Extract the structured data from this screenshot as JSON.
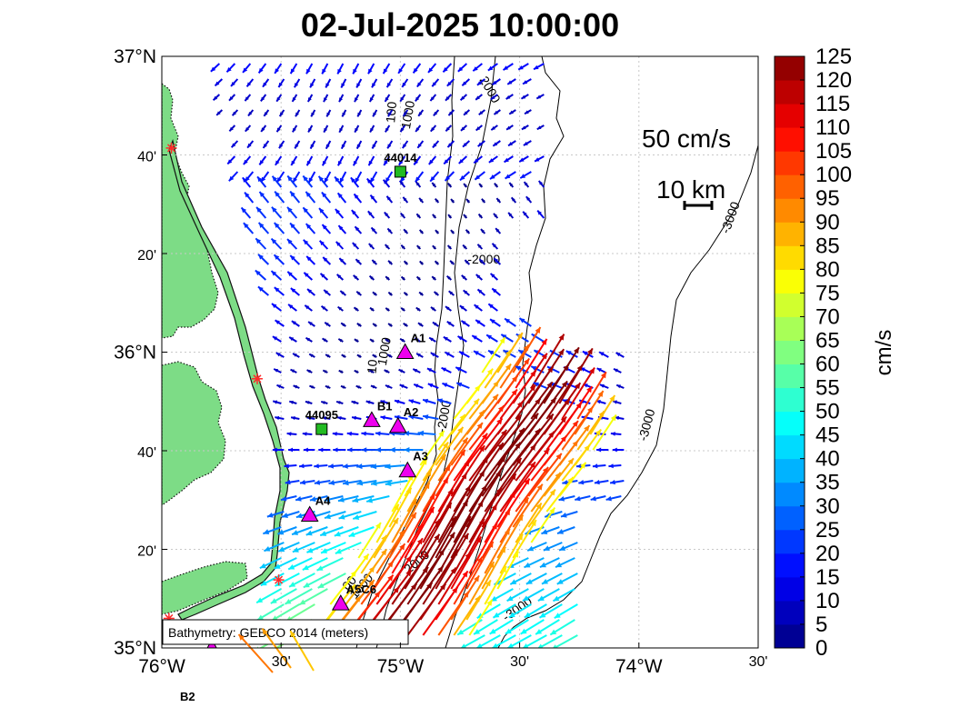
{
  "title": "02-Jul-2025 10:00:00",
  "axes": {
    "lat_ticks": [
      {
        "lat": 37.0,
        "label": "37°N",
        "major": true
      },
      {
        "lat": 36.6667,
        "label": "40'",
        "major": false
      },
      {
        "lat": 36.3333,
        "label": "20'",
        "major": false
      },
      {
        "lat": 36.0,
        "label": "36°N",
        "major": true
      },
      {
        "lat": 35.6667,
        "label": "40'",
        "major": false
      },
      {
        "lat": 35.3333,
        "label": "20'",
        "major": false
      },
      {
        "lat": 35.0,
        "label": "35°N",
        "major": true
      }
    ],
    "lon_ticks": [
      {
        "lon": -76.0,
        "label": "76°W",
        "major": true
      },
      {
        "lon": -75.5,
        "label": "30'",
        "major": false
      },
      {
        "lon": -75.0,
        "label": "75°W",
        "major": true
      },
      {
        "lon": -74.5,
        "label": "30'",
        "major": false
      },
      {
        "lon": -74.0,
        "label": "74°W",
        "major": true
      },
      {
        "lon": -73.5,
        "label": "30'",
        "major": false
      }
    ],
    "lon_range": [
      -76.0,
      -73.5
    ],
    "lat_range": [
      35.0,
      37.0
    ],
    "grid": true
  },
  "colorbar": {
    "label": "cm/s",
    "min": 0,
    "max": 125,
    "step": 5,
    "tick_labels": [
      "0",
      "5",
      "10",
      "15",
      "20",
      "25",
      "30",
      "35",
      "40",
      "45",
      "50",
      "55",
      "60",
      "65",
      "70",
      "75",
      "80",
      "85",
      "90",
      "95",
      "100",
      "105",
      "110",
      "115",
      "120",
      "125"
    ]
  },
  "scale": {
    "velocity_label": "50 cm/s",
    "distance_label": "10 km"
  },
  "credit": "Bathymetry: GEBCO 2014 (meters)",
  "contour_labels": [
    {
      "text": "2000",
      "lon": -74.64,
      "lat": 36.88,
      "rot": 60
    },
    {
      "text": "1000",
      "lon": -74.95,
      "lat": 36.8,
      "rot": -80
    },
    {
      "text": "100",
      "lon": -75.02,
      "lat": 36.81,
      "rot": -85
    },
    {
      "text": "-3000",
      "lon": -73.6,
      "lat": 36.45,
      "rot": -70
    },
    {
      "text": "-2000",
      "lon": -74.65,
      "lat": 36.3,
      "rot": 0
    },
    {
      "text": "1000",
      "lon": -75.05,
      "lat": 36.0,
      "rot": -80
    },
    {
      "text": "10",
      "lon": -75.1,
      "lat": 35.95,
      "rot": -85
    },
    {
      "text": "-3000",
      "lon": -73.95,
      "lat": 35.75,
      "rot": -75
    },
    {
      "text": "-2000",
      "lon": -74.8,
      "lat": 35.78,
      "rot": -80
    },
    {
      "text": "1000",
      "lon": -75.15,
      "lat": 35.2,
      "rot": -50
    },
    {
      "text": "2000",
      "lon": -74.92,
      "lat": 35.28,
      "rot": -40
    },
    {
      "text": "-3000",
      "lon": -74.5,
      "lat": 35.12,
      "rot": -35
    },
    {
      "text": "00",
      "lon": -75.2,
      "lat": 35.21,
      "rot": -50
    }
  ],
  "stations": [
    {
      "label": "44014",
      "type": "buoy",
      "lon": -75.0,
      "lat": 36.61
    },
    {
      "label": "44095",
      "type": "buoy",
      "lon": -75.33,
      "lat": 35.74
    },
    {
      "label": "A1",
      "type": "mooring",
      "lon": -74.98,
      "lat": 36.0
    },
    {
      "label": "B1",
      "type": "mooring",
      "lon": -75.12,
      "lat": 35.77
    },
    {
      "label": "A2",
      "type": "mooring",
      "lon": -75.01,
      "lat": 35.75
    },
    {
      "label": "A3",
      "type": "mooring",
      "lon": -74.97,
      "lat": 35.6
    },
    {
      "label": "A4",
      "type": "mooring",
      "lon": -75.38,
      "lat": 35.45
    },
    {
      "label": "A5C6",
      "type": "mooring",
      "lon": -75.25,
      "lat": 35.15
    },
    {
      "label": "B2",
      "type": "mooring",
      "lon": -75.79,
      "lat": 35.0
    }
  ],
  "shore_stations": [
    {
      "lon": -75.96,
      "lat": 36.69
    },
    {
      "lon": -75.6,
      "lat": 35.91
    },
    {
      "lon": -75.51,
      "lat": 35.23
    },
    {
      "lon": -75.97,
      "lat": 35.1
    }
  ],
  "colors": {
    "land": "#7ddc86",
    "buoy": "#22bb22",
    "mooring": "#ee00ee",
    "shore_station": "#ff2a2a",
    "grid": "#c8c8c8"
  }
}
